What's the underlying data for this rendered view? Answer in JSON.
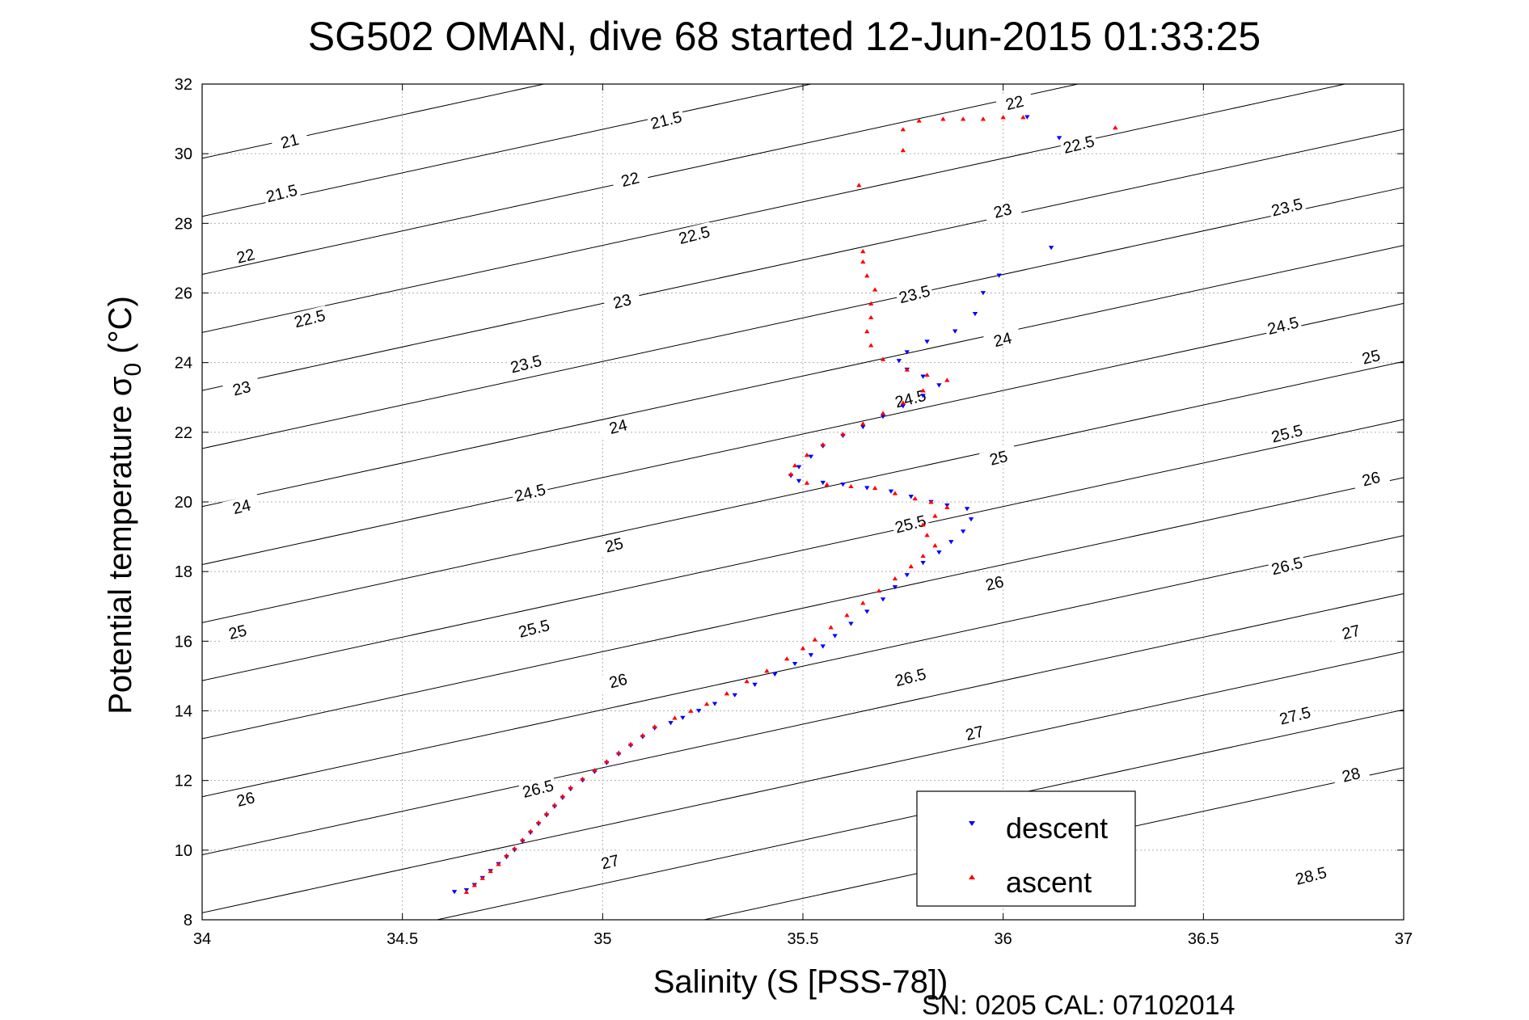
{
  "chart_data": {
    "type": "scatter",
    "title": "SG502 OMAN, dive 68 started 12-Jun-2015 01:33:25",
    "xlabel": "Salinity (S [PSS-78])",
    "ylabel_main": "Potential temperature σ",
    "ylabel_sub": "0",
    "ylabel_unit": "(°C)",
    "footer": "SN: 0205  CAL: 07102014",
    "xlim": [
      34,
      37
    ],
    "ylim": [
      8,
      32
    ],
    "xticks": [
      "34",
      "34.5",
      "35",
      "35.5",
      "36",
      "36.5",
      "37"
    ],
    "yticks": [
      "8",
      "10",
      "12",
      "14",
      "16",
      "18",
      "20",
      "22",
      "24",
      "26",
      "28",
      "30",
      "32"
    ],
    "grid": true,
    "legend_position": "bottom-right",
    "density_contours": {
      "levels": [
        21,
        21.5,
        22,
        22.5,
        23,
        23.5,
        24,
        24.5,
        25,
        25.5,
        26,
        26.5,
        27,
        27.5,
        28,
        28.5
      ],
      "labels": [
        {
          "text": "21",
          "x": 34.22,
          "y": 30.3
        },
        {
          "text": "21.5",
          "x": 34.2,
          "y": 28.8
        },
        {
          "text": "22",
          "x": 34.11,
          "y": 27.0
        },
        {
          "text": "22.5",
          "x": 34.27,
          "y": 25.2
        },
        {
          "text": "23",
          "x": 34.1,
          "y": 23.2
        },
        {
          "text": "24",
          "x": 34.1,
          "y": 19.8
        },
        {
          "text": "25",
          "x": 34.09,
          "y": 16.2
        },
        {
          "text": "26",
          "x": 34.11,
          "y": 11.4
        },
        {
          "text": "21.5",
          "x": 35.16,
          "y": 30.9
        },
        {
          "text": "22",
          "x": 35.07,
          "y": 29.2
        },
        {
          "text": "22.5",
          "x": 35.23,
          "y": 27.6
        },
        {
          "text": "23",
          "x": 35.05,
          "y": 25.7
        },
        {
          "text": "23.5",
          "x": 34.81,
          "y": 23.9
        },
        {
          "text": "24",
          "x": 35.04,
          "y": 22.1
        },
        {
          "text": "24.5",
          "x": 34.82,
          "y": 20.2
        },
        {
          "text": "25",
          "x": 35.03,
          "y": 18.7
        },
        {
          "text": "25.5",
          "x": 34.83,
          "y": 16.3
        },
        {
          "text": "26",
          "x": 35.04,
          "y": 14.8
        },
        {
          "text": "26.5",
          "x": 34.84,
          "y": 11.7
        },
        {
          "text": "27",
          "x": 35.02,
          "y": 9.6
        },
        {
          "text": "22",
          "x": 36.03,
          "y": 31.4
        },
        {
          "text": "22.5",
          "x": 36.19,
          "y": 30.2
        },
        {
          "text": "23",
          "x": 36.0,
          "y": 28.3
        },
        {
          "text": "23.5",
          "x": 35.78,
          "y": 25.9
        },
        {
          "text": "24",
          "x": 36.0,
          "y": 24.6
        },
        {
          "text": "24.5",
          "x": 35.77,
          "y": 22.9
        },
        {
          "text": "25",
          "x": 35.99,
          "y": 21.2
        },
        {
          "text": "25.5",
          "x": 35.77,
          "y": 19.3
        },
        {
          "text": "26",
          "x": 35.98,
          "y": 17.6
        },
        {
          "text": "26.5",
          "x": 35.77,
          "y": 14.9
        },
        {
          "text": "27",
          "x": 35.93,
          "y": 13.3
        },
        {
          "text": "23.5",
          "x": 36.71,
          "y": 28.4
        },
        {
          "text": "24.5",
          "x": 36.7,
          "y": 25.0
        },
        {
          "text": "25",
          "x": 36.92,
          "y": 24.1
        },
        {
          "text": "25.5",
          "x": 36.71,
          "y": 21.9
        },
        {
          "text": "26",
          "x": 36.92,
          "y": 20.6
        },
        {
          "text": "26.5",
          "x": 36.71,
          "y": 18.1
        },
        {
          "text": "27",
          "x": 36.87,
          "y": 16.2
        },
        {
          "text": "27.5",
          "x": 36.73,
          "y": 13.8
        },
        {
          "text": "28",
          "x": 36.87,
          "y": 12.1
        },
        {
          "text": "28.5",
          "x": 36.77,
          "y": 9.2
        }
      ]
    },
    "series": [
      {
        "name": "descent",
        "color": "#0000ff",
        "marker": "triangle-down",
        "points": [
          [
            34.63,
            8.8
          ],
          [
            34.66,
            8.85
          ],
          [
            34.68,
            9.0
          ],
          [
            34.7,
            9.2
          ],
          [
            34.72,
            9.4
          ],
          [
            34.74,
            9.6
          ],
          [
            34.76,
            9.8
          ],
          [
            34.78,
            10.0
          ],
          [
            34.8,
            10.25
          ],
          [
            34.82,
            10.5
          ],
          [
            34.84,
            10.75
          ],
          [
            34.86,
            11.0
          ],
          [
            34.88,
            11.25
          ],
          [
            34.9,
            11.5
          ],
          [
            34.92,
            11.75
          ],
          [
            34.95,
            12.0
          ],
          [
            34.98,
            12.25
          ],
          [
            35.01,
            12.5
          ],
          [
            35.04,
            12.75
          ],
          [
            35.07,
            13.0
          ],
          [
            35.1,
            13.25
          ],
          [
            35.13,
            13.5
          ],
          [
            35.17,
            13.65
          ],
          [
            35.2,
            13.8
          ],
          [
            35.24,
            14.0
          ],
          [
            35.28,
            14.2
          ],
          [
            35.33,
            14.45
          ],
          [
            35.38,
            14.75
          ],
          [
            35.43,
            15.05
          ],
          [
            35.48,
            15.35
          ],
          [
            35.52,
            15.6
          ],
          [
            35.55,
            15.85
          ],
          [
            35.58,
            16.15
          ],
          [
            35.62,
            16.5
          ],
          [
            35.66,
            16.85
          ],
          [
            35.7,
            17.2
          ],
          [
            35.73,
            17.55
          ],
          [
            35.76,
            17.9
          ],
          [
            35.8,
            18.25
          ],
          [
            35.84,
            18.55
          ],
          [
            35.87,
            18.85
          ],
          [
            35.9,
            19.15
          ],
          [
            35.92,
            19.5
          ],
          [
            35.91,
            19.8
          ],
          [
            35.86,
            19.9
          ],
          [
            35.82,
            20.0
          ],
          [
            35.77,
            20.15
          ],
          [
            35.72,
            20.3
          ],
          [
            35.66,
            20.4
          ],
          [
            35.6,
            20.5
          ],
          [
            35.55,
            20.55
          ],
          [
            35.49,
            20.6
          ],
          [
            35.47,
            20.75
          ],
          [
            35.49,
            21.0
          ],
          [
            35.52,
            21.3
          ],
          [
            35.55,
            21.6
          ],
          [
            35.6,
            21.9
          ],
          [
            35.65,
            22.15
          ],
          [
            35.7,
            22.45
          ],
          [
            35.75,
            22.75
          ],
          [
            35.8,
            23.05
          ],
          [
            35.84,
            23.35
          ],
          [
            35.8,
            23.6
          ],
          [
            35.76,
            23.8
          ],
          [
            35.74,
            24.05
          ],
          [
            35.76,
            24.3
          ],
          [
            35.81,
            24.6
          ],
          [
            35.88,
            24.9
          ],
          [
            35.93,
            25.4
          ],
          [
            35.95,
            26.0
          ],
          [
            35.99,
            26.5
          ],
          [
            36.12,
            27.3
          ],
          [
            36.06,
            31.05
          ],
          [
            36.14,
            30.45
          ]
        ]
      },
      {
        "name": "ascent",
        "color": "#ff0000",
        "marker": "triangle-up",
        "points": [
          [
            34.66,
            8.8
          ],
          [
            34.68,
            9.0
          ],
          [
            34.7,
            9.2
          ],
          [
            34.72,
            9.4
          ],
          [
            34.74,
            9.6
          ],
          [
            34.76,
            9.85
          ],
          [
            34.78,
            10.05
          ],
          [
            34.8,
            10.3
          ],
          [
            34.82,
            10.55
          ],
          [
            34.84,
            10.8
          ],
          [
            34.86,
            11.05
          ],
          [
            34.88,
            11.3
          ],
          [
            34.9,
            11.55
          ],
          [
            34.92,
            11.8
          ],
          [
            34.95,
            12.05
          ],
          [
            34.98,
            12.3
          ],
          [
            35.01,
            12.55
          ],
          [
            35.04,
            12.8
          ],
          [
            35.07,
            13.05
          ],
          [
            35.1,
            13.3
          ],
          [
            35.13,
            13.55
          ],
          [
            35.18,
            13.8
          ],
          [
            35.22,
            14.0
          ],
          [
            35.26,
            14.2
          ],
          [
            35.31,
            14.5
          ],
          [
            35.36,
            14.85
          ],
          [
            35.41,
            15.15
          ],
          [
            35.46,
            15.5
          ],
          [
            35.5,
            15.8
          ],
          [
            35.53,
            16.05
          ],
          [
            35.57,
            16.4
          ],
          [
            35.61,
            16.75
          ],
          [
            35.65,
            17.1
          ],
          [
            35.69,
            17.45
          ],
          [
            35.73,
            17.8
          ],
          [
            35.77,
            18.15
          ],
          [
            35.8,
            18.45
          ],
          [
            35.83,
            18.75
          ],
          [
            35.81,
            19.05
          ],
          [
            35.8,
            19.35
          ],
          [
            35.83,
            19.6
          ],
          [
            35.86,
            19.85
          ],
          [
            35.82,
            20.0
          ],
          [
            35.78,
            20.1
          ],
          [
            35.73,
            20.25
          ],
          [
            35.68,
            20.4
          ],
          [
            35.62,
            20.45
          ],
          [
            35.56,
            20.5
          ],
          [
            35.51,
            20.55
          ],
          [
            35.47,
            20.8
          ],
          [
            35.48,
            21.05
          ],
          [
            35.51,
            21.35
          ],
          [
            35.55,
            21.65
          ],
          [
            35.6,
            21.95
          ],
          [
            35.65,
            22.25
          ],
          [
            35.7,
            22.55
          ],
          [
            35.75,
            22.85
          ],
          [
            35.8,
            23.2
          ],
          [
            35.86,
            23.5
          ],
          [
            35.81,
            23.65
          ],
          [
            35.76,
            23.8
          ],
          [
            35.7,
            24.1
          ],
          [
            35.67,
            24.5
          ],
          [
            35.66,
            24.9
          ],
          [
            35.67,
            25.3
          ],
          [
            35.67,
            25.7
          ],
          [
            35.68,
            26.1
          ],
          [
            35.66,
            26.5
          ],
          [
            35.65,
            26.9
          ],
          [
            35.65,
            27.2
          ],
          [
            35.64,
            29.1
          ],
          [
            35.75,
            30.1
          ],
          [
            35.75,
            30.7
          ],
          [
            35.79,
            30.95
          ],
          [
            35.85,
            31.0
          ],
          [
            35.9,
            31.0
          ],
          [
            35.95,
            31.0
          ],
          [
            36.0,
            31.05
          ],
          [
            36.05,
            31.05
          ],
          [
            36.28,
            30.75
          ]
        ]
      }
    ]
  }
}
